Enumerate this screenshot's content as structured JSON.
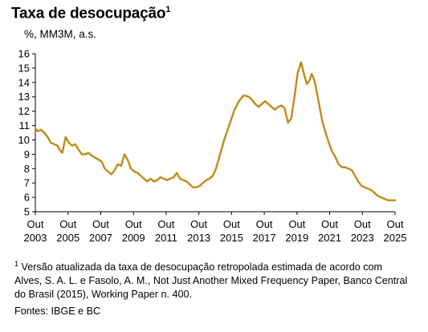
{
  "title": "Taxa de desocupação",
  "title_footnote_marker": "1",
  "subtitle": "%, MM3M, a.s.",
  "footnote": {
    "marker": "1",
    "text": "Versão atualizada da taxa de desocupação retropolada estimada de acordo com Alves, S. A. L. e Fasolo, A. M., Not Just Another Mixed Frequency Paper, Banco Central do Brasil (2015), Working Paper n. 400."
  },
  "sources": "Fontes: IBGE e BC",
  "chart_data": {
    "type": "line",
    "title": "Taxa de desocupação",
    "ylabel": "%, MM3M, a.s.",
    "xlabel": "",
    "ylim": [
      5,
      16
    ],
    "yticks": [
      5,
      6,
      7,
      8,
      9,
      10,
      11,
      12,
      13,
      14,
      15,
      16
    ],
    "xlim": [
      2003.75,
      2025.75
    ],
    "xticks": [
      {
        "x": 2003.75,
        "month": "Out",
        "year": "2003"
      },
      {
        "x": 2005.75,
        "month": "Out",
        "year": "2005"
      },
      {
        "x": 2007.75,
        "month": "Out",
        "year": "2007"
      },
      {
        "x": 2009.75,
        "month": "Out",
        "year": "2009"
      },
      {
        "x": 2011.75,
        "month": "Out",
        "year": "2011"
      },
      {
        "x": 2013.75,
        "month": "Out",
        "year": "2013"
      },
      {
        "x": 2015.75,
        "month": "Out",
        "year": "2015"
      },
      {
        "x": 2017.75,
        "month": "Out",
        "year": "2017"
      },
      {
        "x": 2019.75,
        "month": "Out",
        "year": "2019"
      },
      {
        "x": 2021.75,
        "month": "Out",
        "year": "2021"
      },
      {
        "x": 2023.75,
        "month": "Out",
        "year": "2023"
      },
      {
        "x": 2025.75,
        "month": "Out",
        "year": "2025"
      }
    ],
    "grid": false,
    "color": "#c28a16",
    "series": [
      {
        "x": [
          2003.75,
          2003.9,
          2004.1,
          2004.3,
          2004.5,
          2004.7,
          2004.9,
          2005.1,
          2005.25,
          2005.4,
          2005.6,
          2005.8,
          2006.0,
          2006.2,
          2006.4,
          2006.6,
          2006.8,
          2007.0,
          2007.2,
          2007.5,
          2007.8,
          2008.0,
          2008.2,
          2008.4,
          2008.6,
          2008.8,
          2009.0,
          2009.2,
          2009.4,
          2009.6,
          2009.8,
          2010.0,
          2010.2,
          2010.4,
          2010.6,
          2010.8,
          2011.0,
          2011.2,
          2011.4,
          2011.6,
          2011.8,
          2012.0,
          2012.2,
          2012.4,
          2012.6,
          2012.8,
          2013.0,
          2013.2,
          2013.4,
          2013.6,
          2013.8,
          2014.0,
          2014.2,
          2014.4,
          2014.6,
          2014.8,
          2015.0,
          2015.3,
          2015.6,
          2015.9,
          2016.2,
          2016.5,
          2016.8,
          2017.0,
          2017.2,
          2017.4,
          2017.6,
          2017.8,
          2018.0,
          2018.2,
          2018.4,
          2018.6,
          2018.8,
          2019.0,
          2019.2,
          2019.4,
          2019.6,
          2019.8,
          2020.0,
          2020.2,
          2020.35,
          2020.5,
          2020.65,
          2020.8,
          2020.95,
          2021.1,
          2021.3,
          2021.5,
          2021.7,
          2021.9,
          2022.1,
          2022.3,
          2022.5,
          2022.7,
          2022.9,
          2023.1,
          2023.3,
          2023.5,
          2023.7,
          2023.9,
          2024.1,
          2024.3,
          2024.5,
          2024.7,
          2024.9,
          2025.1,
          2025.3,
          2025.5,
          2025.75
        ],
        "y": [
          10.8,
          10.6,
          10.7,
          10.5,
          10.2,
          9.8,
          9.7,
          9.6,
          9.3,
          9.1,
          10.2,
          9.8,
          9.6,
          9.7,
          9.3,
          9.0,
          9.0,
          9.1,
          8.9,
          8.7,
          8.5,
          8.0,
          7.8,
          7.6,
          7.9,
          8.3,
          8.2,
          9.0,
          8.6,
          8.0,
          7.8,
          7.7,
          7.5,
          7.3,
          7.1,
          7.3,
          7.1,
          7.2,
          7.4,
          7.3,
          7.2,
          7.3,
          7.4,
          7.7,
          7.3,
          7.2,
          7.1,
          6.9,
          6.7,
          6.7,
          6.8,
          7.0,
          7.2,
          7.3,
          7.5,
          8.0,
          8.8,
          10.0,
          11.0,
          12.0,
          12.7,
          13.1,
          13.0,
          12.8,
          12.5,
          12.3,
          12.5,
          12.7,
          12.5,
          12.3,
          12.1,
          12.3,
          12.4,
          12.2,
          11.2,
          11.5,
          13.0,
          14.7,
          15.4,
          14.5,
          13.9,
          14.1,
          14.6,
          14.2,
          13.4,
          12.5,
          11.3,
          10.5,
          9.8,
          9.2,
          8.8,
          8.3,
          8.1,
          8.1,
          8.0,
          7.9,
          7.5,
          7.1,
          6.8,
          6.7,
          6.6,
          6.5,
          6.3,
          6.1,
          6.0,
          5.9,
          5.8,
          5.8,
          5.8
        ]
      }
    ]
  }
}
